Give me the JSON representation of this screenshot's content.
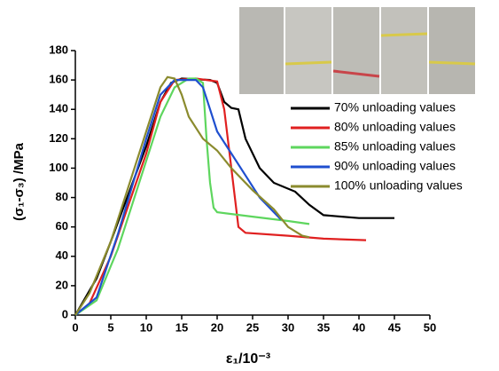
{
  "chart_data": {
    "type": "line",
    "x_label": "ε₁/10⁻³",
    "y_label": "(σ₁-σ₃) /MPa",
    "xlim": [
      0,
      50
    ],
    "xticks": [
      0,
      5,
      10,
      15,
      20,
      25,
      30,
      35,
      40,
      45,
      50
    ],
    "ylim": [
      0,
      180
    ],
    "yticks": [
      0,
      20,
      40,
      60,
      80,
      100,
      120,
      140,
      160,
      180
    ],
    "series": [
      {
        "name": "70% unloading values",
        "color": "#000000",
        "x": [
          0,
          3,
          5,
          10,
          12,
          13.5,
          15,
          19,
          20,
          21,
          22,
          23,
          24,
          26,
          28,
          31,
          33,
          35,
          40,
          45
        ],
        "values": [
          0,
          25,
          50,
          115,
          145,
          158,
          161,
          160,
          158,
          145,
          141,
          140,
          120,
          100,
          90,
          84,
          75,
          68,
          66,
          66
        ]
      },
      {
        "name": "80% unloading values",
        "color": "#e02020",
        "x": [
          0,
          2,
          5,
          10,
          12,
          14,
          17,
          20,
          21,
          22,
          23,
          24,
          30,
          35,
          41
        ],
        "values": [
          0,
          8,
          40,
          110,
          145,
          160,
          161,
          159,
          140,
          100,
          60,
          56,
          54,
          52,
          51
        ]
      },
      {
        "name": "85% unloading values",
        "color": "#5ed65e",
        "x": [
          0,
          3,
          6,
          10,
          12,
          14,
          16,
          17,
          18,
          18.5,
          19,
          19.5,
          20,
          25,
          30,
          33
        ],
        "values": [
          0,
          10,
          45,
          105,
          135,
          155,
          161,
          161,
          158,
          120,
          90,
          73,
          70,
          67,
          64,
          62
        ]
      },
      {
        "name": "90% unloading values",
        "color": "#1f4fcf",
        "x": [
          0,
          3,
          6,
          10,
          12,
          14,
          17,
          18,
          19,
          20,
          22,
          24,
          26,
          28,
          29
        ],
        "values": [
          0,
          12,
          55,
          120,
          150,
          160,
          160,
          155,
          140,
          125,
          110,
          95,
          80,
          70,
          65
        ]
      },
      {
        "name": "100% unloading values",
        "color": "#8b8b2e",
        "x": [
          0,
          2,
          5,
          10,
          12,
          13,
          14,
          15,
          16,
          18,
          20,
          22,
          25,
          28,
          30,
          32,
          33
        ],
        "values": [
          0,
          15,
          50,
          125,
          155,
          162,
          161,
          150,
          135,
          120,
          112,
          100,
          85,
          72,
          60,
          54,
          53
        ]
      }
    ]
  }
}
